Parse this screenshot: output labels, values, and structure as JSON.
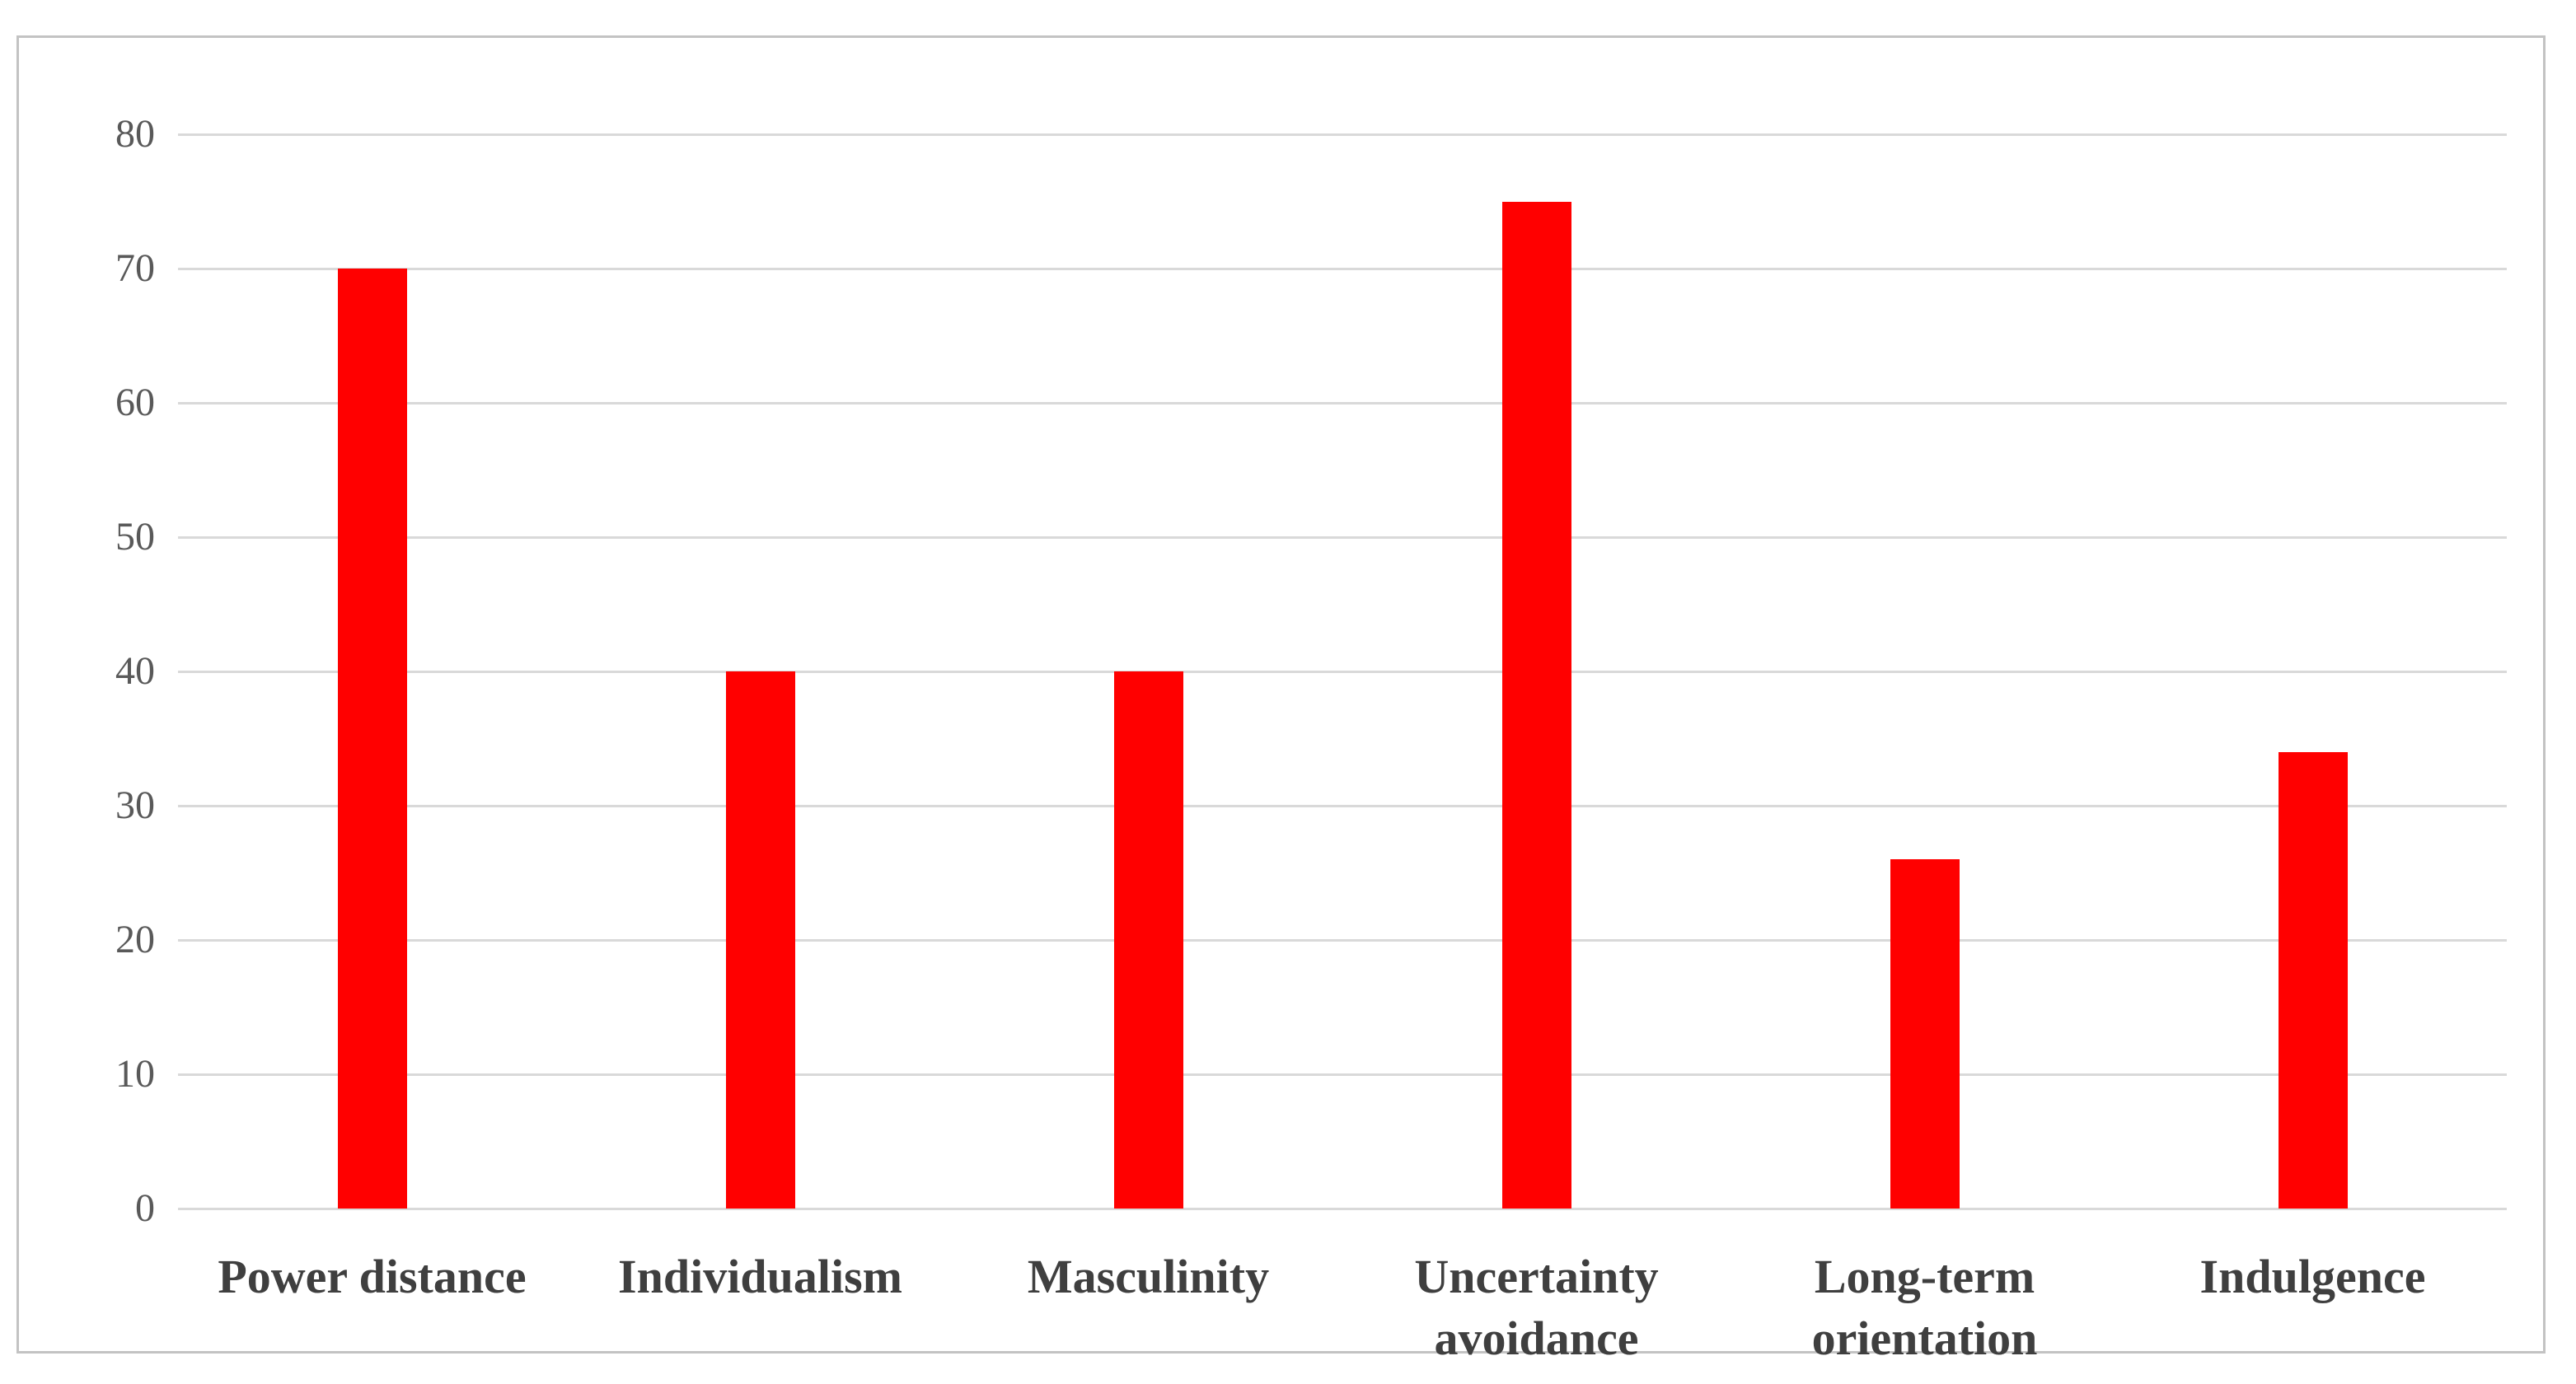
{
  "chart_data": {
    "type": "bar",
    "title": "",
    "xlabel": "",
    "ylabel": "",
    "categories": [
      "Power distance",
      "Individualism",
      "Masculinity",
      "Uncertainty avoidance",
      "Long-term orientation",
      "Indulgence"
    ],
    "values": [
      70,
      40,
      40,
      75,
      26,
      34
    ],
    "ylim": [
      0,
      80
    ],
    "yticks": [
      0,
      10,
      20,
      30,
      40,
      50,
      60,
      70,
      80
    ],
    "grid": true,
    "legend": "none",
    "bar_color": "#ff0000",
    "gridline_color": "#d9d9d9",
    "frame_border_color": "#c3c3c3",
    "tick_label_color": "#595959",
    "category_label_color": "#3f3f3f"
  }
}
